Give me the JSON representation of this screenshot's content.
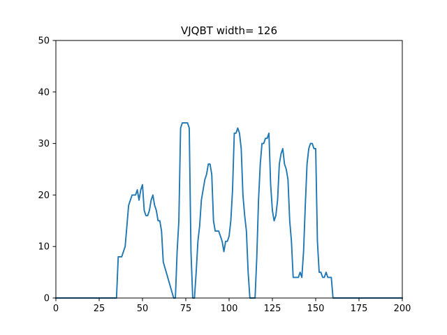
{
  "chart_data": {
    "type": "line",
    "title": "VJQBT width= 126",
    "xlabel": "",
    "ylabel": "",
    "xlim": [
      0,
      200
    ],
    "ylim": [
      0,
      50
    ],
    "xticks": [
      0,
      25,
      50,
      75,
      100,
      125,
      150,
      175,
      200
    ],
    "yticks": [
      0,
      10,
      20,
      30,
      40,
      50
    ],
    "grid": false,
    "series": [
      {
        "color": "#1f77b4",
        "x": [
          0,
          35,
          36,
          38,
          40,
          41,
          42,
          44,
          46,
          47,
          48,
          49,
          50,
          51,
          52,
          53,
          54,
          55,
          56,
          57,
          58,
          59,
          60,
          61,
          62,
          68,
          69,
          70,
          71,
          72,
          73,
          74,
          75,
          76,
          77,
          78,
          79,
          80,
          81,
          82,
          83,
          84,
          85,
          86,
          87,
          88,
          89,
          90,
          91,
          92,
          93,
          94,
          95,
          96,
          97,
          98,
          99,
          100,
          101,
          102,
          103,
          104,
          105,
          106,
          107,
          108,
          109,
          110,
          111,
          112,
          113,
          115,
          116,
          117,
          118,
          119,
          120,
          121,
          122,
          123,
          124,
          125,
          126,
          127,
          128,
          129,
          130,
          131,
          132,
          133,
          134,
          135,
          136,
          137,
          138,
          139,
          140,
          141,
          142,
          143,
          144,
          145,
          146,
          147,
          148,
          149,
          150,
          151,
          152,
          153,
          154,
          155,
          156,
          157,
          158,
          159,
          160,
          161,
          200
        ],
        "y": [
          0,
          0,
          8,
          8,
          10,
          14,
          18,
          20,
          20,
          21,
          19,
          21,
          22,
          17,
          16,
          16,
          17,
          19,
          20,
          18,
          17,
          15,
          15,
          13,
          7,
          0,
          0,
          9,
          15,
          33,
          34,
          34,
          34,
          34,
          33,
          9,
          0,
          0,
          5,
          11,
          14,
          19,
          21,
          23,
          24,
          26,
          26,
          24,
          15,
          13,
          13,
          13,
          12,
          11,
          9,
          11,
          11,
          12,
          15,
          21,
          32,
          32,
          33,
          32,
          29,
          20,
          16,
          13,
          5,
          0,
          0,
          0,
          8,
          19,
          26,
          30,
          30,
          31,
          31,
          32,
          22,
          17,
          15,
          16,
          19,
          26,
          28,
          29,
          26,
          25,
          23,
          15,
          11,
          4,
          4,
          4,
          4,
          5,
          4,
          9,
          18,
          26,
          29,
          30,
          30,
          29,
          29,
          11,
          5,
          5,
          4,
          4,
          5,
          4,
          4,
          4,
          0,
          0,
          0
        ]
      }
    ]
  }
}
